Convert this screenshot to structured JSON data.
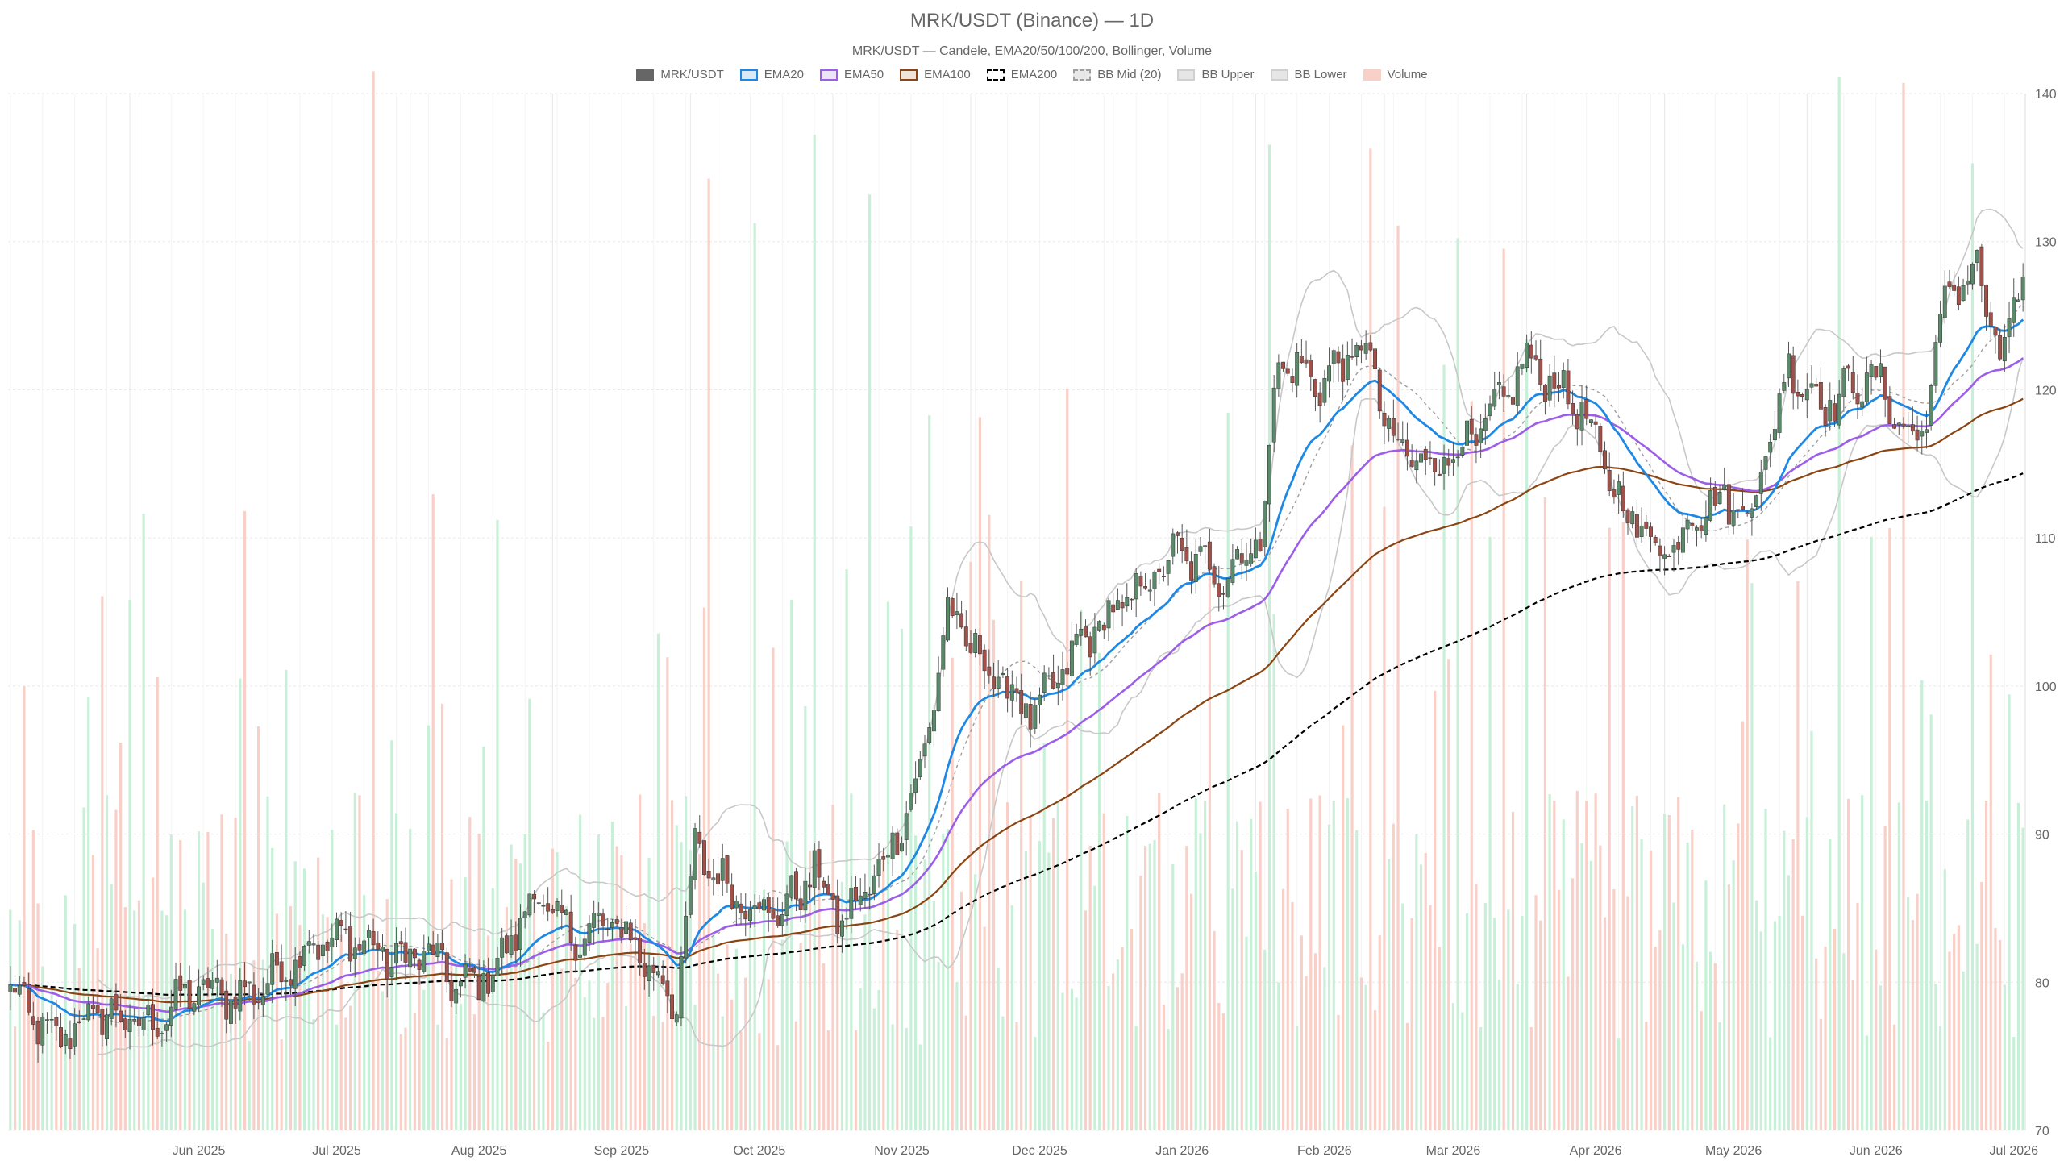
{
  "title": "MRK/USDT (Binance) — 1D",
  "subtitle": "MRK/USDT — Candele, EMA20/50/100/200, Bollinger, Volume",
  "legend": [
    {
      "label": "MRK/USDT",
      "fill": "#666666",
      "stroke": "#666666",
      "dash": false
    },
    {
      "label": "EMA20",
      "fill": "#dbe9f7",
      "stroke": "#1e88e5",
      "dash": false
    },
    {
      "label": "EMA50",
      "fill": "#ece4f7",
      "stroke": "#9c5ee8",
      "dash": false
    },
    {
      "label": "EMA100",
      "fill": "#efe4dc",
      "stroke": "#8b4513",
      "dash": false
    },
    {
      "label": "EMA200",
      "fill": "#ffffff",
      "stroke": "#000000",
      "dash": true
    },
    {
      "label": "BB Mid (20)",
      "fill": "#e8e8e8",
      "stroke": "#9e9e9e",
      "dash": true
    },
    {
      "label": "BB Upper",
      "fill": "#e6e6e6",
      "stroke": "#d0d0d0",
      "dash": false
    },
    {
      "label": "BB Lower",
      "fill": "#e6e6e6",
      "stroke": "#d0d0d0",
      "dash": false
    },
    {
      "label": "Volume",
      "fill": "#f8d0c8",
      "stroke": "#f8d0c8",
      "dash": false
    }
  ],
  "colors": {
    "up_candle": "#5a8a6a",
    "down_candle": "#a0524a",
    "wick": "#555555",
    "ema20": "#1e88e5",
    "ema50": "#9c5ee8",
    "ema100": "#8b4513",
    "ema200": "#000000",
    "bb_mid": "#9e9e9e",
    "bb_band": "#c8c8c8",
    "vol_up": "#c8f0d8",
    "vol_down": "#f8d0c8",
    "grid": "#e8e8e8"
  },
  "chart_data": {
    "type": "candlestick",
    "title": "MRK/USDT (Binance) — 1D",
    "subtitle": "MRK/USDT — Candele, EMA20/50/100/200, Bollinger, Volume",
    "ylim": [
      70,
      140
    ],
    "y_ticks": [
      70,
      80,
      90,
      100,
      110,
      120,
      130,
      140
    ],
    "x_tick_labels": [
      "Jun 2025",
      "Jul 2025",
      "Aug 2025",
      "Sep 2025",
      "Oct 2025",
      "Nov 2025",
      "Dec 2025",
      "Jan 2026",
      "Feb 2026",
      "Mar 2026",
      "Apr 2026",
      "May 2026",
      "Jun 2026",
      "Jul 2026"
    ],
    "y_axis_position": "right",
    "grid": true,
    "legend_position": "top-center",
    "x_start": "2025-05-06",
    "x_end": "2026-07-18",
    "close_anchors": [
      [
        "2025-05-06",
        79.5
      ],
      [
        "2025-05-15",
        76.0
      ],
      [
        "2025-05-25",
        78.0
      ],
      [
        "2025-06-05",
        77.0
      ],
      [
        "2025-06-15",
        79.5
      ],
      [
        "2025-06-25",
        79.0
      ],
      [
        "2025-07-01",
        80.0
      ],
      [
        "2025-07-10",
        82.5
      ],
      [
        "2025-07-20",
        83.0
      ],
      [
        "2025-07-28",
        81.5
      ],
      [
        "2025-08-05",
        82.0
      ],
      [
        "2025-08-12",
        79.5
      ],
      [
        "2025-08-20",
        81.0
      ],
      [
        "2025-08-28",
        86.0
      ],
      [
        "2025-09-05",
        83.0
      ],
      [
        "2025-09-15",
        84.0
      ],
      [
        "2025-09-20",
        82.0
      ],
      [
        "2025-09-28",
        78.5
      ],
      [
        "2025-10-02",
        89.0
      ],
      [
        "2025-10-10",
        86.0
      ],
      [
        "2025-10-20",
        84.5
      ],
      [
        "2025-10-28",
        87.5
      ],
      [
        "2025-11-03",
        84.0
      ],
      [
        "2025-11-12",
        88.0
      ],
      [
        "2025-11-20",
        94.0
      ],
      [
        "2025-11-26",
        105.0
      ],
      [
        "2025-12-05",
        101.0
      ],
      [
        "2025-12-15",
        98.0
      ],
      [
        "2025-12-25",
        103.0
      ],
      [
        "2026-01-05",
        106.0
      ],
      [
        "2026-01-15",
        109.0
      ],
      [
        "2026-01-25",
        107.5
      ],
      [
        "2026-02-02",
        110.0
      ],
      [
        "2026-02-06",
        122.0
      ],
      [
        "2026-02-15",
        120.5
      ],
      [
        "2026-02-25",
        123.0
      ],
      [
        "2026-03-03",
        116.0
      ],
      [
        "2026-03-12",
        115.0
      ],
      [
        "2026-03-22",
        117.0
      ],
      [
        "2026-04-01",
        122.0
      ],
      [
        "2026-04-12",
        119.0
      ],
      [
        "2026-04-22",
        112.0
      ],
      [
        "2026-05-01",
        109.0
      ],
      [
        "2026-05-10",
        112.5
      ],
      [
        "2026-05-20",
        112.0
      ],
      [
        "2026-05-28",
        121.5
      ],
      [
        "2026-06-05",
        119.0
      ],
      [
        "2026-06-15",
        121.0
      ],
      [
        "2026-06-25",
        116.0
      ],
      [
        "2026-07-02",
        127.0
      ],
      [
        "2026-07-08",
        128.0
      ],
      [
        "2026-07-13",
        122.0
      ],
      [
        "2026-07-18",
        127.5
      ]
    ],
    "volume_ylim": [
      0,
      1
    ]
  }
}
